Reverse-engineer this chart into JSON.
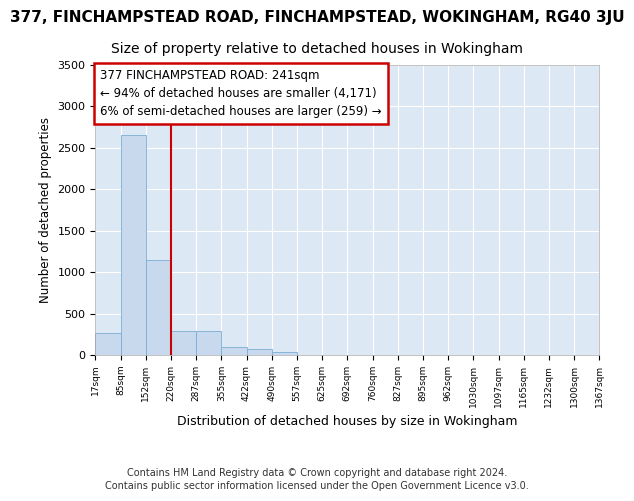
{
  "title_line1": "377, FINCHAMPSTEAD ROAD, FINCHAMPSTEAD, WOKINGHAM, RG40 3JU",
  "title_line2": "Size of property relative to detached houses in Wokingham",
  "xlabel": "Distribution of detached houses by size in Wokingham",
  "ylabel": "Number of detached properties",
  "footer_line1": "Contains HM Land Registry data © Crown copyright and database right 2024.",
  "footer_line2": "Contains public sector information licensed under the Open Government Licence v3.0.",
  "annotation_line1": "377 FINCHAMPSTEAD ROAD: 241sqm",
  "annotation_line2": "← 94% of detached houses are smaller (4,171)",
  "annotation_line3": "6% of semi-detached houses are larger (259) →",
  "bar_values": [
    270,
    2650,
    1150,
    290,
    290,
    100,
    70,
    40,
    0,
    0,
    0,
    0,
    0,
    0,
    0,
    0,
    0,
    0,
    0,
    0
  ],
  "bin_labels": [
    "17sqm",
    "85sqm",
    "152sqm",
    "220sqm",
    "287sqm",
    "355sqm",
    "422sqm",
    "490sqm",
    "557sqm",
    "625sqm",
    "692sqm",
    "760sqm",
    "827sqm",
    "895sqm",
    "962sqm",
    "1030sqm",
    "1097sqm",
    "1165sqm",
    "1232sqm",
    "1300sqm",
    "1367sqm"
  ],
  "bar_color": "#c8d9ee",
  "bar_edge_color": "#7aadd4",
  "vline_color": "#cc0000",
  "annotation_box_color": "#cc0000",
  "ylim": [
    0,
    3500
  ],
  "yticks": [
    0,
    500,
    1000,
    1500,
    2000,
    2500,
    3000,
    3500
  ],
  "bg_color": "#dde8f5",
  "grid_color": "#ffffff",
  "title_fontsize": 11,
  "subtitle_fontsize": 10,
  "annotation_fontsize": 8.5,
  "footer_fontsize": 7
}
